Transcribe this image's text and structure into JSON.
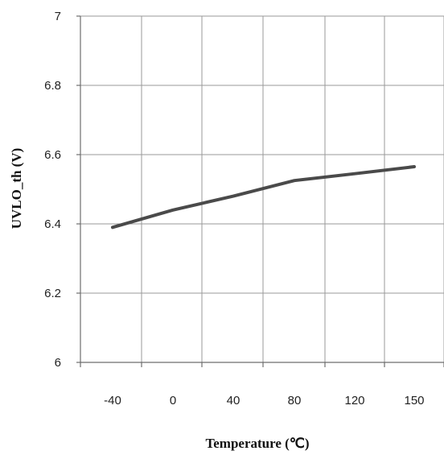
{
  "chart_data": {
    "type": "line",
    "x_categories": [
      "-40",
      "0",
      "40",
      "80",
      "120",
      "150"
    ],
    "x_label": "Temperature (℃)",
    "y_label": "UVLO_th (V)",
    "y_ticks": [
      "7",
      "6.8",
      "6.6",
      "6.4",
      "6.2",
      "6"
    ],
    "ylim": [
      6,
      7
    ],
    "grid": true,
    "series": [
      {
        "x": [
          "-40",
          "0",
          "40",
          "80",
          "120",
          "150"
        ],
        "values": [
          6.39,
          6.44,
          6.48,
          6.525,
          6.545,
          6.565
        ],
        "color": "#4a4a4a"
      }
    ]
  }
}
